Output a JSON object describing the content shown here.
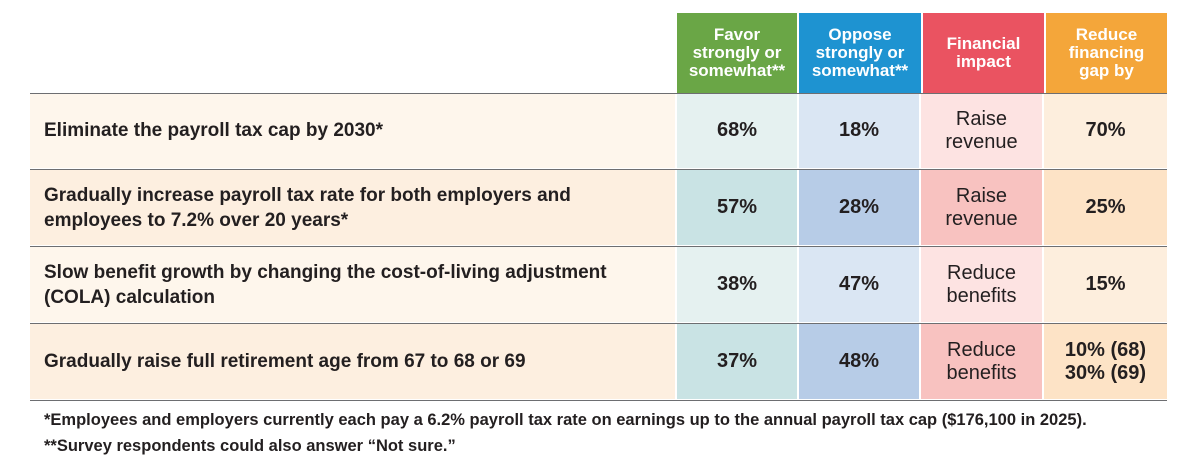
{
  "chart_data": {
    "type": "table",
    "columns": [
      {
        "label": "Favor\nstrongly or\nsomewhat**",
        "color": "#6aa646"
      },
      {
        "label": "Oppose\nstrongly or\nsomewhat**",
        "color": "#1e93d1"
      },
      {
        "label": "Financial\nimpact",
        "color": "#ea5361"
      },
      {
        "label": "Reduce\nfinancing\ngap by",
        "color": "#f4a63a"
      }
    ],
    "rows": [
      {
        "label": "Eliminate the payroll tax cap by 2030*",
        "favor": "68%",
        "oppose": "18%",
        "impact": "Raise\nrevenue",
        "reduce": "70%"
      },
      {
        "label": "Gradually increase payroll tax rate for both employers and employees to 7.2% over 20 years*",
        "favor": "57%",
        "oppose": "28%",
        "impact": "Raise\nrevenue",
        "reduce": "25%"
      },
      {
        "label": "Slow benefit growth by changing the cost-of-living adjustment (COLA) calculation",
        "favor": "38%",
        "oppose": "47%",
        "impact": "Reduce\nbenefits",
        "reduce": "15%"
      },
      {
        "label": "Gradually raise full retirement age from 67 to 68 or 69",
        "favor": "37%",
        "oppose": "48%",
        "impact": "Reduce\nbenefits",
        "reduce": "10% (68)\n30% (69)"
      }
    ],
    "favor_values": [
      68,
      57,
      38,
      37
    ],
    "oppose_values": [
      18,
      28,
      47,
      48
    ],
    "colors": {
      "favor_light": "#e5f1f0",
      "favor_dark": "#c9e3e4",
      "oppose_light": "#dae6f3",
      "oppose_dark": "#b7cce7",
      "impact_light": "#fde3e2",
      "impact_dark": "#f8c2c0",
      "reduce_light": "#fdeedd",
      "reduce_dark": "#fde3c6"
    }
  },
  "footnotes": [
    "*Employees and employers currently each pay a 6.2% payroll tax rate on earnings up to the annual payroll tax cap ($176,100 in 2025).",
    "**Survey respondents could also answer “Not sure.”"
  ]
}
